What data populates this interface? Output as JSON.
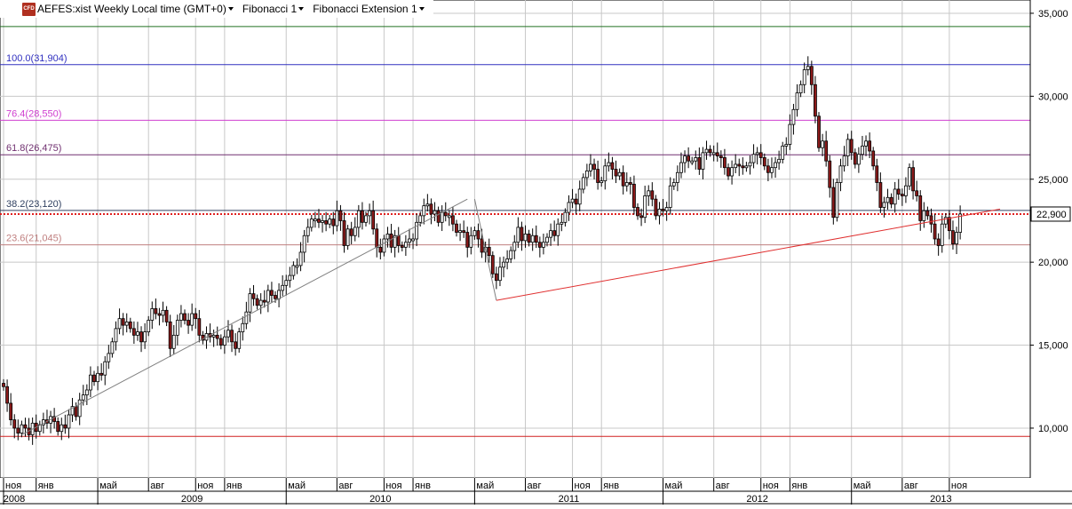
{
  "toolbar": {
    "icon": "CFD",
    "title": "AEFES:xist Weekly Local time (GMT+0)",
    "fib1": "Fibonacci 1",
    "fib2": "Fibonacci Extension 1"
  },
  "colors": {
    "up_candle": "#ffffff",
    "down_candle": "#8b1a1a",
    "wick": "#000000",
    "grid": "#c8c8c8",
    "fib_100": "#3030c0",
    "fib_76": "#d040d0",
    "fib_61": "#703070",
    "fib_38": "#304060",
    "fib_23": "#c08080",
    "top_line": "#207020",
    "bottom_line": "#d02020",
    "current_price_line": "#e02020",
    "trend_line": "#808080",
    "ext_line": "#e03030"
  },
  "chart_data": {
    "type": "candlestick",
    "symbol": "AEFES:xist",
    "timeframe": "Weekly",
    "ylim": [
      7000,
      35800
    ],
    "y_ticks": [
      "10,000",
      "15,000",
      "20,000",
      "25,000",
      "30,000",
      "35,000"
    ],
    "y_tick_values": [
      10000,
      15000,
      20000,
      25000,
      30000,
      35000
    ],
    "current_price": 22900,
    "current_price_label": "22,900",
    "fib_levels": [
      {
        "label": "100.0(31,904)",
        "value": 31904,
        "color_key": "fib_100"
      },
      {
        "label": "76.4(28,550)",
        "value": 28550,
        "color_key": "fib_76"
      },
      {
        "label": "61.8(26,475)",
        "value": 26475,
        "color_key": "fib_61"
      },
      {
        "label": "38.2(23,120)",
        "value": 23120,
        "color_key": "fib_38"
      },
      {
        "label": "23.6(21,045)",
        "value": 21045,
        "color_key": "fib_23"
      }
    ],
    "horizontal_lines": [
      34200,
      9500
    ],
    "x_month_labels": [
      "ноя",
      "янв",
      "май",
      "авг",
      "ноя",
      "янв",
      "май",
      "авг",
      "ноя",
      "янв",
      "май",
      "авг",
      "ноя",
      "янв",
      "май",
      "авг",
      "ноя",
      "янв",
      "май",
      "авг",
      "ноя"
    ],
    "x_month_weeks": [
      0,
      9,
      26,
      40,
      53,
      61,
      78,
      92,
      105,
      113,
      130,
      144,
      157,
      165,
      182,
      196,
      209,
      217,
      234,
      248,
      261
    ],
    "x_year_labels": [
      "2008",
      "2009",
      "2010",
      "2011",
      "2012",
      "2013"
    ],
    "x_year_weeks": [
      0,
      26,
      78,
      130,
      182,
      234
    ],
    "trend_line_1": [
      [
        5,
        9600
      ],
      [
        128,
        23800
      ]
    ],
    "trend_line_2": [
      [
        130,
        23800
      ],
      [
        136,
        17700
      ],
      [
        275,
        23200
      ]
    ],
    "closes": [
      12500,
      11500,
      10500,
      10000,
      9700,
      10200,
      10000,
      9600,
      10300,
      9800,
      10200,
      10500,
      10300,
      10700,
      10400,
      9800,
      10200,
      10000,
      10800,
      11300,
      10700,
      11700,
      12000,
      12300,
      13200,
      12800,
      13300,
      13200,
      14000,
      14500,
      15200,
      16000,
      16600,
      16200,
      16400,
      16000,
      15600,
      15800,
      15200,
      15800,
      16500,
      17200,
      16900,
      16800,
      17100,
      16400,
      14800,
      15600,
      16500,
      16900,
      16500,
      16200,
      16900,
      16600,
      15600,
      15300,
      15700,
      15500,
      15600,
      15400,
      15000,
      15500,
      15900,
      15200,
      14800,
      15800,
      16300,
      17000,
      18100,
      17800,
      17400,
      17700,
      17600,
      18300,
      18000,
      17800,
      18300,
      18600,
      18900,
      19200,
      19800,
      19800,
      20600,
      21600,
      22100,
      22600,
      22600,
      22400,
      22500,
      22300,
      22600,
      22200,
      23100,
      22500,
      21000,
      22000,
      21600,
      22100,
      23100,
      22400,
      22800,
      23100,
      22000,
      20900,
      20600,
      21400,
      21700,
      20900,
      21600,
      21000,
      20900,
      21200,
      21400,
      21400,
      22400,
      22800,
      23400,
      23500,
      22900,
      23100,
      22400,
      23000,
      22800,
      22800,
      22300,
      21800,
      21900,
      21800,
      20900,
      21600,
      21900,
      21400,
      20600,
      20900,
      20400,
      19300,
      18900,
      19700,
      20000,
      20200,
      20700,
      21200,
      22100,
      21300,
      21700,
      21200,
      21600,
      21200,
      20900,
      21200,
      21500,
      21900,
      21600,
      22300,
      22400,
      23000,
      23600,
      23800,
      23500,
      24400,
      25100,
      25500,
      25900,
      25600,
      24800,
      24900,
      25800,
      26000,
      25600,
      25200,
      25400,
      24600,
      24800,
      24700,
      23300,
      22800,
      22700,
      24000,
      24300,
      23800,
      22800,
      23200,
      23100,
      23300,
      24600,
      24800,
      25400,
      26000,
      26400,
      26100,
      26100,
      26300,
      25600,
      26600,
      26800,
      26600,
      26600,
      26400,
      26300,
      25700,
      25200,
      25700,
      25900,
      25800,
      25700,
      25800,
      26000,
      26500,
      26600,
      26300,
      25800,
      25400,
      25700,
      26000,
      26200,
      27000,
      27100,
      28300,
      29200,
      30200,
      30700,
      31600,
      31800,
      30700,
      28800,
      26900,
      27300,
      26100,
      24500,
      22700,
      24800,
      25800,
      26400,
      27400,
      26600,
      25900,
      26500,
      27000,
      27300,
      26700,
      25800,
      24800,
      23300,
      23600,
      23900,
      23500,
      24400,
      24100,
      24000,
      24600,
      25700,
      24300,
      24000,
      22500,
      23100,
      22800,
      22300,
      21400,
      21000,
      22300,
      22700,
      21900,
      21100,
      21800,
      22900
    ]
  }
}
